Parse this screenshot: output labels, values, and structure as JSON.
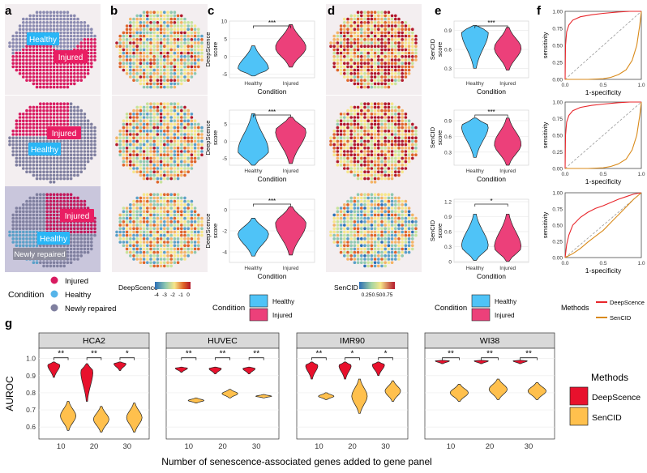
{
  "panel_letters": [
    "a",
    "b",
    "c",
    "d",
    "e",
    "f",
    "g"
  ],
  "tissue_labels": [
    [
      "Healthy",
      "Injured"
    ],
    [
      "Injured",
      "Healthy"
    ],
    [
      "Injured",
      "Healthy",
      "Newly repaired"
    ]
  ],
  "legend_a": {
    "title": "Condition",
    "items": [
      {
        "label": "Injured",
        "color": "#d81b60"
      },
      {
        "label": "Healthy",
        "color": "#56b4e9"
      },
      {
        "label": "Newly repaired",
        "color": "#7f7f9f"
      }
    ]
  },
  "colorbar_b": {
    "title": "DeepScence",
    "ticks": [
      "-4",
      "-3",
      "-2",
      "-1",
      "0"
    ]
  },
  "colorbar_d": {
    "title": "SenCID",
    "ticks": [
      "0.25",
      "0.50",
      "0.75"
    ]
  },
  "legend_c": {
    "title": "Condition",
    "items": [
      {
        "label": "Healthy",
        "color": "#4fc3f7"
      },
      {
        "label": "Injured",
        "color": "#ec407a"
      }
    ]
  },
  "legend_e": {
    "title": "Condition",
    "items": [
      {
        "label": "Healthy",
        "color": "#4fc3f7"
      },
      {
        "label": "Injured",
        "color": "#ec407a"
      }
    ]
  },
  "legend_f": {
    "title": "Methods",
    "items": [
      {
        "label": "DeepScence",
        "color": "#e8262b"
      },
      {
        "label": "SenCID",
        "color": "#d98a1a"
      }
    ]
  },
  "legend_g": {
    "title": "Methods",
    "items": [
      {
        "label": "DeepScence",
        "color": "#e8112d"
      },
      {
        "label": "SenCID",
        "color": "#ffc04d"
      }
    ]
  },
  "chart_data": [
    {
      "type": "violin",
      "panel": "c",
      "row": 1,
      "categories": [
        "Healthy",
        "Injured"
      ],
      "xlabel": "Condition",
      "ylabel": "DeepScence score",
      "ylim": [
        -6,
        10
      ],
      "yticks": [
        -5,
        0,
        5,
        10
      ],
      "significance": "***",
      "series": [
        {
          "name": "Healthy",
          "min": -5.5,
          "max": 3,
          "median": -3.5
        },
        {
          "name": "Injured",
          "min": -3,
          "max": 9,
          "median": 2.5
        }
      ]
    },
    {
      "type": "violin",
      "panel": "c",
      "row": 2,
      "categories": [
        "Healthy",
        "Injured"
      ],
      "xlabel": "Condition",
      "ylabel": "DeepScence score",
      "ylim": [
        -7,
        9
      ],
      "yticks": [
        -5,
        0,
        5
      ],
      "significance": "***",
      "series": [
        {
          "name": "Healthy",
          "min": -7,
          "max": 8,
          "median": -3
        },
        {
          "name": "Injured",
          "min": -6.5,
          "max": 7,
          "median": 3
        }
      ]
    },
    {
      "type": "violin",
      "panel": "c",
      "row": 3,
      "categories": [
        "Healthy",
        "Injured"
      ],
      "xlabel": "Condition",
      "ylabel": "DeepScence score",
      "ylim": [
        -5,
        1
      ],
      "yticks": [
        -4,
        -2,
        0
      ],
      "significance": "***",
      "series": [
        {
          "name": "Healthy",
          "min": -4.4,
          "max": -0.8,
          "median": -2.3
        },
        {
          "name": "Injured",
          "min": -4.3,
          "max": 0.3,
          "median": -1.3
        }
      ]
    },
    {
      "type": "violin",
      "panel": "e",
      "row": 1,
      "categories": [
        "Healthy",
        "Injured"
      ],
      "xlabel": "Condition",
      "ylabel": "SenCID score",
      "ylim": [
        0.15,
        1.05
      ],
      "yticks": [
        0.3,
        0.6,
        0.9
      ],
      "significance": "***",
      "series": [
        {
          "name": "Healthy",
          "min": 0.3,
          "max": 0.98,
          "median": 0.88
        },
        {
          "name": "Injured",
          "min": 0.27,
          "max": 0.95,
          "median": 0.62
        }
      ]
    },
    {
      "type": "violin",
      "panel": "e",
      "row": 2,
      "categories": [
        "Healthy",
        "Injured"
      ],
      "xlabel": "Condition",
      "ylabel": "SenCID score",
      "ylim": [
        0.05,
        1.1
      ],
      "yticks": [
        0.3,
        0.6,
        0.9
      ],
      "significance": "***",
      "series": [
        {
          "name": "Healthy",
          "min": 0.2,
          "max": 0.95,
          "median": 0.8
        },
        {
          "name": "Injured",
          "min": 0.05,
          "max": 0.95,
          "median": 0.45
        }
      ]
    },
    {
      "type": "violin",
      "panel": "e",
      "row": 3,
      "categories": [
        "Healthy",
        "Injured"
      ],
      "xlabel": "Condition",
      "ylabel": "SenCID score",
      "ylim": [
        -0.02,
        1.25
      ],
      "yticks": [
        0.0,
        0.3,
        0.6,
        0.9,
        1.2
      ],
      "significance": "*",
      "series": [
        {
          "name": "Healthy",
          "min": 0.02,
          "max": 0.95,
          "median": 0.3
        },
        {
          "name": "Injured",
          "min": 0.0,
          "max": 0.95,
          "median": 0.28
        }
      ]
    },
    {
      "type": "line",
      "panel": "f",
      "row": 1,
      "xlabel": "1-specificity",
      "ylabel": "sensitivity",
      "xlim": [
        0,
        1
      ],
      "ylim": [
        0,
        1
      ],
      "xticks": [
        0.0,
        0.5,
        1.0
      ],
      "yticks": [
        0.0,
        0.25,
        0.5,
        0.75,
        1.0
      ],
      "series": [
        {
          "name": "DeepScence",
          "x": [
            0,
            0.005,
            0.02,
            0.05,
            0.1,
            0.2,
            0.35,
            0.5,
            0.7,
            0.85,
            1
          ],
          "y": [
            0,
            0.5,
            0.7,
            0.8,
            0.87,
            0.92,
            0.95,
            0.97,
            0.99,
            1,
            1
          ]
        },
        {
          "name": "SenCID",
          "x": [
            0,
            0.3,
            0.5,
            0.6,
            0.7,
            0.8,
            0.88,
            0.94,
            0.98,
            1
          ],
          "y": [
            0,
            0,
            0.01,
            0.03,
            0.07,
            0.14,
            0.28,
            0.5,
            0.8,
            1
          ]
        }
      ]
    },
    {
      "type": "line",
      "panel": "f",
      "row": 2,
      "xlabel": "1-specificity",
      "ylabel": "sensitivity",
      "xlim": [
        0,
        1
      ],
      "ylim": [
        0,
        1
      ],
      "xticks": [
        0.0,
        0.5,
        1.0
      ],
      "yticks": [
        0.0,
        0.25,
        0.5,
        0.75,
        1.0
      ],
      "series": [
        {
          "name": "DeepScence",
          "x": [
            0,
            0.005,
            0.02,
            0.05,
            0.1,
            0.2,
            0.35,
            0.5,
            0.7,
            0.85,
            1
          ],
          "y": [
            0,
            0.5,
            0.7,
            0.8,
            0.87,
            0.92,
            0.95,
            0.97,
            0.99,
            1,
            1
          ]
        },
        {
          "name": "SenCID",
          "x": [
            0,
            0.3,
            0.5,
            0.6,
            0.7,
            0.8,
            0.88,
            0.94,
            0.98,
            1
          ],
          "y": [
            0,
            0,
            0.01,
            0.03,
            0.07,
            0.14,
            0.28,
            0.5,
            0.8,
            1
          ]
        }
      ]
    },
    {
      "type": "line",
      "panel": "f",
      "row": 3,
      "xlabel": "1-specificity",
      "ylabel": "sensitivity",
      "xlim": [
        0,
        1
      ],
      "ylim": [
        0,
        1
      ],
      "xticks": [
        0.0,
        0.5,
        1.0
      ],
      "yticks": [
        0.0,
        0.25,
        0.5,
        0.75,
        1.0
      ],
      "series": [
        {
          "name": "DeepScence",
          "x": [
            0,
            0.02,
            0.05,
            0.1,
            0.2,
            0.3,
            0.4,
            0.5,
            0.6,
            0.7,
            0.8,
            0.9,
            1
          ],
          "y": [
            0,
            0.2,
            0.35,
            0.5,
            0.62,
            0.7,
            0.76,
            0.8,
            0.85,
            0.9,
            0.94,
            0.98,
            1
          ]
        },
        {
          "name": "SenCID",
          "x": [
            0,
            0.1,
            0.2,
            0.3,
            0.4,
            0.5,
            0.6,
            0.7,
            0.8,
            0.9,
            1
          ],
          "y": [
            0,
            0.06,
            0.14,
            0.24,
            0.33,
            0.42,
            0.54,
            0.66,
            0.78,
            0.9,
            1
          ]
        }
      ]
    },
    {
      "type": "violin",
      "panel": "g",
      "xlabel": "Number of senescence-associated genes added to gene panel",
      "ylabel": "AUROC",
      "ylim": [
        0.53,
        1.06
      ],
      "yticks": [
        0.6,
        0.7,
        0.8,
        0.9,
        1.0
      ],
      "categories": [
        "10",
        "20",
        "30"
      ],
      "facets": [
        {
          "title": "HCA2",
          "significance": [
            "**",
            "**",
            "*"
          ],
          "series": [
            {
              "name": "DeepScence",
              "ranges": [
                [
                  0.89,
                  0.98
                ],
                [
                  0.75,
                  0.97
                ],
                [
                  0.93,
                  0.98
                ]
              ]
            },
            {
              "name": "SenCID",
              "ranges": [
                [
                  0.58,
                  0.75
                ],
                [
                  0.57,
                  0.72
                ],
                [
                  0.57,
                  0.74
                ]
              ]
            }
          ]
        },
        {
          "title": "HUVEC",
          "significance": [
            "**",
            "**",
            "**"
          ],
          "series": [
            {
              "name": "DeepScence",
              "ranges": [
                [
                  0.92,
                  0.95
                ],
                [
                  0.91,
                  0.95
                ],
                [
                  0.91,
                  0.95
                ]
              ]
            },
            {
              "name": "SenCID",
              "ranges": [
                [
                  0.74,
                  0.77
                ],
                [
                  0.77,
                  0.82
                ],
                [
                  0.77,
                  0.79
                ]
              ]
            }
          ]
        },
        {
          "title": "IMR90",
          "significance": [
            "**",
            "*",
            "*"
          ],
          "series": [
            {
              "name": "DeepScence",
              "ranges": [
                [
                  0.88,
                  0.98
                ],
                [
                  0.88,
                  0.98
                ],
                [
                  0.9,
                  0.98
                ]
              ]
            },
            {
              "name": "SenCID",
              "ranges": [
                [
                  0.76,
                  0.8
                ],
                [
                  0.68,
                  0.88
                ],
                [
                  0.75,
                  0.87
                ]
              ]
            }
          ]
        },
        {
          "title": "WI38",
          "significance": [
            "**",
            "**",
            "**"
          ],
          "series": [
            {
              "name": "DeepScence",
              "ranges": [
                [
                  0.97,
                  0.99
                ],
                [
                  0.97,
                  0.99
                ],
                [
                  0.97,
                  0.99
                ]
              ]
            },
            {
              "name": "SenCID",
              "ranges": [
                [
                  0.75,
                  0.85
                ],
                [
                  0.76,
                  0.88
                ],
                [
                  0.76,
                  0.86
                ]
              ]
            }
          ]
        }
      ]
    }
  ]
}
